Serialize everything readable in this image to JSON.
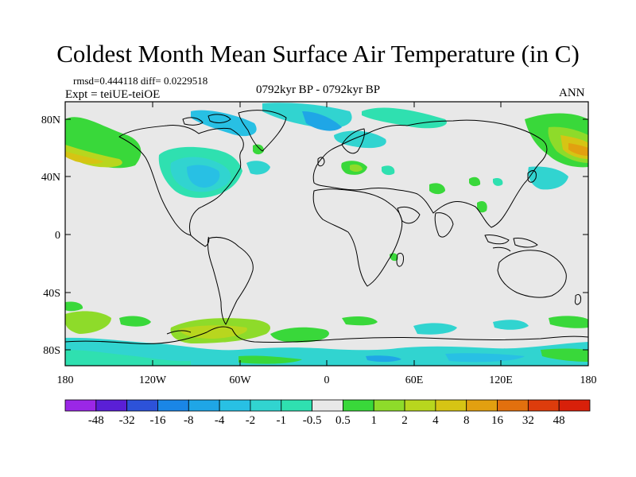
{
  "title": "Coldest Month Mean Surface Air Temperature (in C)",
  "stats": {
    "rmsd_label": "rmsd=",
    "rmsd": "0.444118",
    "diff_label": "diff=",
    "diff": "0.0229518"
  },
  "experiment": "Expt = teiUE-teiOE",
  "period": "0792kyr BP - 0792kyr BP",
  "season": "ANN",
  "axes": {
    "lat_ticks": [
      "80N",
      "40N",
      "0",
      "40S",
      "80S"
    ],
    "lon_ticks": [
      "180",
      "120W",
      "60W",
      "0",
      "60E",
      "120E",
      "180"
    ]
  },
  "colorbar": {
    "labels": [
      "-48",
      "-32",
      "-16",
      "-8",
      "-4",
      "-2",
      "-1",
      "-0.5",
      "0.5",
      "1",
      "2",
      "4",
      "8",
      "16",
      "32",
      "48"
    ],
    "colors": [
      "#9b27e6",
      "#5a1fd6",
      "#2d52d9",
      "#1a86e6",
      "#1fa6e6",
      "#28c0e4",
      "#31d4d0",
      "#2fe0b0",
      "#e8e8e8",
      "#39d83a",
      "#8edb2a",
      "#b8d61e",
      "#d6c414",
      "#e2a010",
      "#e2700e",
      "#dd3c0c",
      "#d8200a"
    ]
  },
  "colors": {
    "background_field": "#e8e8e8",
    "coast": "#000000"
  }
}
